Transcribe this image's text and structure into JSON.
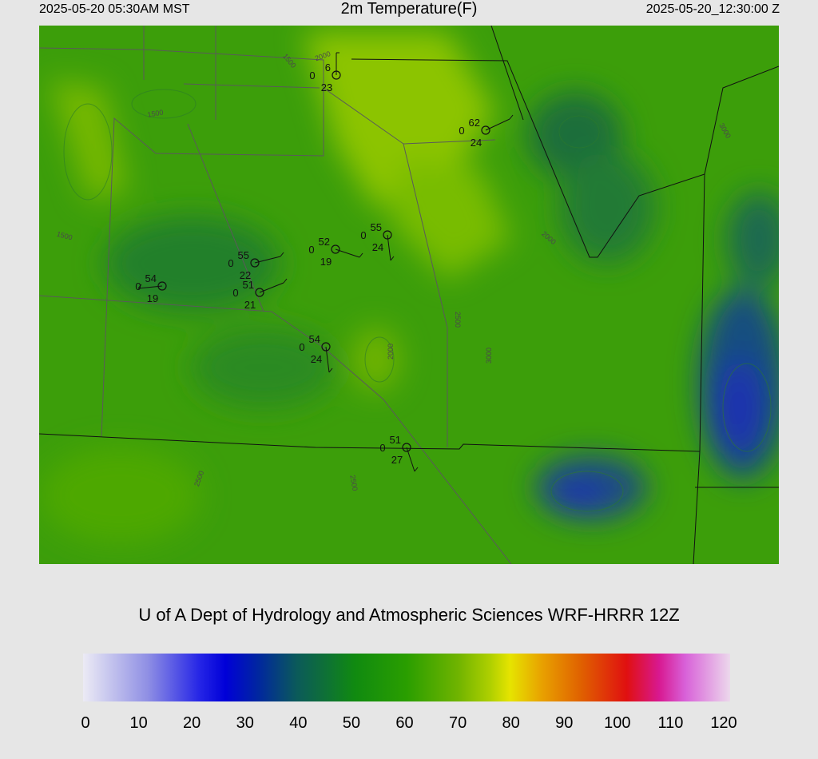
{
  "header": {
    "left": "2025-05-20 05:30AM MST",
    "title": "2m Temperature(F)",
    "right": "2025-05-20_12:30:00 Z"
  },
  "stations": [
    {
      "temp": 6,
      "sky": 0,
      "dewpoint": 23
    },
    {
      "temp": 62,
      "sky": 0,
      "dewpoint": 24
    },
    {
      "temp": 55,
      "sky": 0,
      "dewpoint": 24
    },
    {
      "temp": 52,
      "sky": 0,
      "dewpoint": 19
    },
    {
      "temp": 55,
      "sky": 0,
      "dewpoint": 22
    },
    {
      "temp": 51,
      "sky": 0,
      "dewpoint": 21
    },
    {
      "temp": 54,
      "sky": 0,
      "dewpoint": 19
    },
    {
      "temp": 54,
      "sky": 0,
      "dewpoint": 24
    },
    {
      "temp": 51,
      "sky": 0,
      "dewpoint": 27
    }
  ],
  "contour_labels": [
    "1500",
    "1500",
    "2000",
    "1500",
    "2000",
    "2500",
    "3000",
    "2000",
    "3000",
    "2500",
    "2500"
  ],
  "credit": "U of A Dept of Hydrology and Atmospheric Sciences WRF-HRRR 12Z",
  "colorbar": {
    "ticks": [
      0,
      10,
      20,
      30,
      40,
      50,
      60,
      70,
      80,
      90,
      100,
      110,
      120
    ]
  }
}
